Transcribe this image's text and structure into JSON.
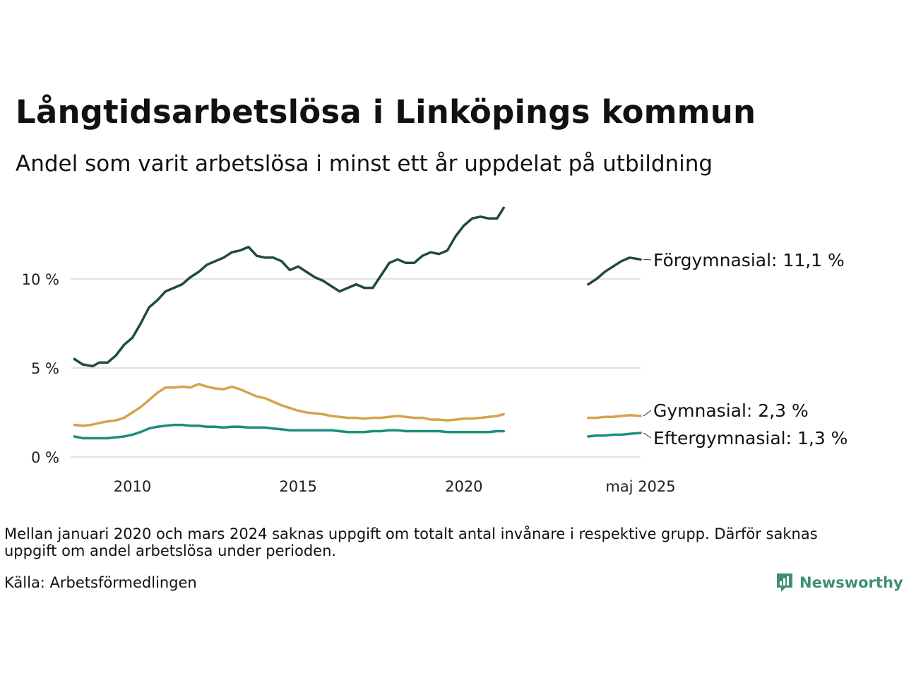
{
  "title": "Långtidsarbetslösa i Linköpings kommun",
  "subtitle": "Andel som varit arbetslösa i minst ett år uppdelat på utbildning",
  "note": "Mellan januari 2020 och mars 2024 saknas uppgift om totalt antal invånare i respektive grupp. Därför saknas uppgift om andel arbetslösa under perioden.",
  "source": "Källa: Arbetsförmedlingen",
  "logo_text": "Newsworthy",
  "chart_data": {
    "type": "line",
    "title": "Långtidsarbetslösa i Linköpings kommun",
    "subtitle": "Andel som varit arbetslösa i minst ett år uppdelat på utbildning",
    "ylim": [
      0,
      14
    ],
    "y_ticks": [
      {
        "value": 0,
        "label": "0 %"
      },
      {
        "value": 5,
        "label": "5 %"
      },
      {
        "value": 10,
        "label": "10 %"
      }
    ],
    "x_ticks": [
      {
        "value": 2010,
        "label": "2010"
      },
      {
        "value": 2015,
        "label": "2015"
      },
      {
        "value": 2020,
        "label": "2020"
      },
      {
        "value": 2025.33,
        "label": "maj 2025"
      }
    ],
    "xlim": [
      2008.2,
      2025.33
    ],
    "grid": true,
    "legend": "direct labels at right end",
    "series": [
      {
        "name": "Förgymnasial",
        "end_label": "Förgymnasial: 11,1 %",
        "color": "#1f4a40",
        "segments": [
          [
            [
              2008.25,
              5.5
            ],
            [
              2008.5,
              5.2
            ],
            [
              2008.8,
              5.1
            ],
            [
              2009.0,
              5.3
            ],
            [
              2009.25,
              5.3
            ],
            [
              2009.5,
              5.7
            ],
            [
              2009.75,
              6.3
            ],
            [
              2010.0,
              6.7
            ],
            [
              2010.25,
              7.5
            ],
            [
              2010.5,
              8.4
            ],
            [
              2010.75,
              8.8
            ],
            [
              2011.0,
              9.3
            ],
            [
              2011.25,
              9.5
            ],
            [
              2011.5,
              9.7
            ],
            [
              2011.75,
              10.1
            ],
            [
              2012.0,
              10.4
            ],
            [
              2012.25,
              10.8
            ],
            [
              2012.5,
              11.0
            ],
            [
              2012.75,
              11.2
            ],
            [
              2013.0,
              11.5
            ],
            [
              2013.25,
              11.6
            ],
            [
              2013.5,
              11.8
            ],
            [
              2013.75,
              11.3
            ],
            [
              2014.0,
              11.2
            ],
            [
              2014.25,
              11.2
            ],
            [
              2014.5,
              11.0
            ],
            [
              2014.75,
              10.5
            ],
            [
              2015.0,
              10.7
            ],
            [
              2015.25,
              10.4
            ],
            [
              2015.5,
              10.1
            ],
            [
              2015.75,
              9.9
            ],
            [
              2016.0,
              9.6
            ],
            [
              2016.25,
              9.3
            ],
            [
              2016.5,
              9.5
            ],
            [
              2016.75,
              9.7
            ],
            [
              2017.0,
              9.5
            ],
            [
              2017.25,
              9.5
            ],
            [
              2017.5,
              10.2
            ],
            [
              2017.75,
              10.9
            ],
            [
              2018.0,
              11.1
            ],
            [
              2018.25,
              10.9
            ],
            [
              2018.5,
              10.9
            ],
            [
              2018.75,
              11.3
            ],
            [
              2019.0,
              11.5
            ],
            [
              2019.25,
              11.4
            ],
            [
              2019.5,
              11.6
            ],
            [
              2019.75,
              12.4
            ],
            [
              2020.0,
              13.0
            ],
            [
              2020.25,
              13.4
            ],
            [
              2020.5,
              13.5
            ],
            [
              2020.75,
              13.4
            ],
            [
              2021.0,
              13.4
            ],
            [
              2021.2,
              14.0
            ]
          ],
          [
            [
              2023.75,
              9.7
            ],
            [
              2024.0,
              10.0
            ],
            [
              2024.25,
              10.4
            ],
            [
              2024.5,
              10.7
            ],
            [
              2024.75,
              11.0
            ],
            [
              2025.0,
              11.2
            ],
            [
              2025.33,
              11.1
            ]
          ]
        ]
      },
      {
        "name": "Gymnasial",
        "end_label": "Gymnasial:  2,3 %",
        "color": "#d4a44c",
        "segments": [
          [
            [
              2008.25,
              1.8
            ],
            [
              2008.5,
              1.75
            ],
            [
              2008.75,
              1.8
            ],
            [
              2009.0,
              1.9
            ],
            [
              2009.25,
              2.0
            ],
            [
              2009.5,
              2.05
            ],
            [
              2009.75,
              2.2
            ],
            [
              2010.0,
              2.5
            ],
            [
              2010.25,
              2.8
            ],
            [
              2010.5,
              3.2
            ],
            [
              2010.75,
              3.6
            ],
            [
              2011.0,
              3.9
            ],
            [
              2011.25,
              3.9
            ],
            [
              2011.5,
              3.95
            ],
            [
              2011.75,
              3.9
            ],
            [
              2012.0,
              4.1
            ],
            [
              2012.25,
              3.95
            ],
            [
              2012.5,
              3.85
            ],
            [
              2012.75,
              3.8
            ],
            [
              2013.0,
              3.95
            ],
            [
              2013.25,
              3.8
            ],
            [
              2013.5,
              3.6
            ],
            [
              2013.75,
              3.4
            ],
            [
              2014.0,
              3.3
            ],
            [
              2014.25,
              3.1
            ],
            [
              2014.5,
              2.9
            ],
            [
              2014.75,
              2.75
            ],
            [
              2015.0,
              2.6
            ],
            [
              2015.25,
              2.5
            ],
            [
              2015.5,
              2.45
            ],
            [
              2015.75,
              2.4
            ],
            [
              2016.0,
              2.3
            ],
            [
              2016.25,
              2.25
            ],
            [
              2016.5,
              2.2
            ],
            [
              2016.75,
              2.2
            ],
            [
              2017.0,
              2.15
            ],
            [
              2017.25,
              2.2
            ],
            [
              2017.5,
              2.2
            ],
            [
              2017.75,
              2.25
            ],
            [
              2018.0,
              2.3
            ],
            [
              2018.25,
              2.25
            ],
            [
              2018.5,
              2.2
            ],
            [
              2018.75,
              2.2
            ],
            [
              2019.0,
              2.1
            ],
            [
              2019.25,
              2.1
            ],
            [
              2019.5,
              2.05
            ],
            [
              2019.75,
              2.1
            ],
            [
              2020.0,
              2.15
            ],
            [
              2020.25,
              2.15
            ],
            [
              2020.5,
              2.2
            ],
            [
              2020.75,
              2.25
            ],
            [
              2021.0,
              2.3
            ],
            [
              2021.2,
              2.4
            ]
          ],
          [
            [
              2023.75,
              2.2
            ],
            [
              2024.0,
              2.2
            ],
            [
              2024.25,
              2.25
            ],
            [
              2024.5,
              2.25
            ],
            [
              2024.75,
              2.3
            ],
            [
              2025.0,
              2.35
            ],
            [
              2025.33,
              2.3
            ]
          ]
        ]
      },
      {
        "name": "Eftergymnasial",
        "end_label": "Eftergymnasial:  1,3 %",
        "color": "#1b8f7b",
        "segments": [
          [
            [
              2008.25,
              1.15
            ],
            [
              2008.5,
              1.05
            ],
            [
              2008.75,
              1.05
            ],
            [
              2009.0,
              1.05
            ],
            [
              2009.25,
              1.05
            ],
            [
              2009.5,
              1.1
            ],
            [
              2009.75,
              1.15
            ],
            [
              2010.0,
              1.25
            ],
            [
              2010.25,
              1.4
            ],
            [
              2010.5,
              1.6
            ],
            [
              2010.75,
              1.7
            ],
            [
              2011.0,
              1.75
            ],
            [
              2011.25,
              1.8
            ],
            [
              2011.5,
              1.8
            ],
            [
              2011.75,
              1.75
            ],
            [
              2012.0,
              1.75
            ],
            [
              2012.25,
              1.7
            ],
            [
              2012.5,
              1.7
            ],
            [
              2012.75,
              1.65
            ],
            [
              2013.0,
              1.7
            ],
            [
              2013.25,
              1.7
            ],
            [
              2013.5,
              1.65
            ],
            [
              2013.75,
              1.65
            ],
            [
              2014.0,
              1.65
            ],
            [
              2014.25,
              1.6
            ],
            [
              2014.5,
              1.55
            ],
            [
              2014.75,
              1.5
            ],
            [
              2015.0,
              1.5
            ],
            [
              2015.25,
              1.5
            ],
            [
              2015.5,
              1.5
            ],
            [
              2015.75,
              1.5
            ],
            [
              2016.0,
              1.5
            ],
            [
              2016.25,
              1.45
            ],
            [
              2016.5,
              1.4
            ],
            [
              2016.75,
              1.4
            ],
            [
              2017.0,
              1.4
            ],
            [
              2017.25,
              1.45
            ],
            [
              2017.5,
              1.45
            ],
            [
              2017.75,
              1.5
            ],
            [
              2018.0,
              1.5
            ],
            [
              2018.25,
              1.45
            ],
            [
              2018.5,
              1.45
            ],
            [
              2018.75,
              1.45
            ],
            [
              2019.0,
              1.45
            ],
            [
              2019.25,
              1.45
            ],
            [
              2019.5,
              1.4
            ],
            [
              2019.75,
              1.4
            ],
            [
              2020.0,
              1.4
            ],
            [
              2020.25,
              1.4
            ],
            [
              2020.5,
              1.4
            ],
            [
              2020.75,
              1.4
            ],
            [
              2021.0,
              1.45
            ],
            [
              2021.2,
              1.45
            ]
          ],
          [
            [
              2023.75,
              1.15
            ],
            [
              2024.0,
              1.2
            ],
            [
              2024.25,
              1.2
            ],
            [
              2024.5,
              1.25
            ],
            [
              2024.75,
              1.25
            ],
            [
              2025.0,
              1.3
            ],
            [
              2025.33,
              1.35
            ]
          ]
        ]
      }
    ]
  }
}
